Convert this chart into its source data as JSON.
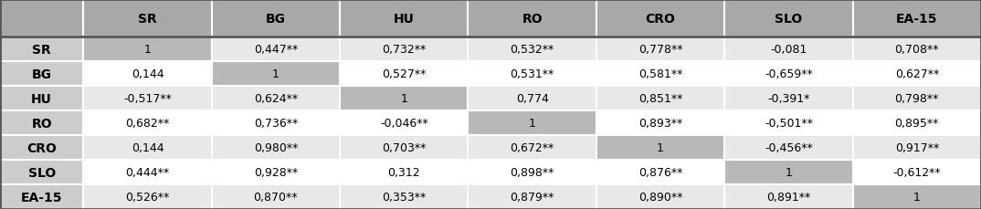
{
  "row_headers": [
    "SR",
    "BG",
    "HU",
    "RO",
    "CRO",
    "SLO",
    "EA-15"
  ],
  "col_headers": [
    "SR",
    "BG",
    "HU",
    "RO",
    "CRO",
    "SLO",
    "EA-15"
  ],
  "cells": [
    [
      "1",
      "0,447**",
      "0,732**",
      "0,532**",
      "0,778**",
      "-0,081",
      "0,708**"
    ],
    [
      "0,144",
      "1",
      "0,527**",
      "0,531**",
      "0,581**",
      "-0,659**",
      "0,627**"
    ],
    [
      "-0,517**",
      "0,624**",
      "1",
      "0,774",
      "0,851**",
      "-0,391*",
      "0,798**"
    ],
    [
      "0,682**",
      "0,736**",
      "-0,046**",
      "1",
      "0,893**",
      "-0,501**",
      "0,895**"
    ],
    [
      "0,144",
      "0,980**",
      "0,703**",
      "0,672**",
      "1",
      "-0,456**",
      "0,917**"
    ],
    [
      "0,444**",
      "0,928**",
      "0,312",
      "0,898**",
      "0,876**",
      "1",
      "-0,612**"
    ],
    [
      "0,526**",
      "0,870**",
      "0,353**",
      "0,879**",
      "0,890**",
      "0,891**",
      "1"
    ]
  ],
  "diagonal_bg": "#b8b8b8",
  "header_bg": "#a8a8a8",
  "row_header_bg": "#cccccc",
  "alt_row_bg": "#e8e8e8",
  "white_bg": "#ffffff",
  "cell_text_color": "#000000",
  "header_text_color": "#000000",
  "font_size": 9.0,
  "header_font_size": 10.0,
  "row_header_font_size": 10.0,
  "fig_width": 10.74,
  "fig_height": 2.3
}
